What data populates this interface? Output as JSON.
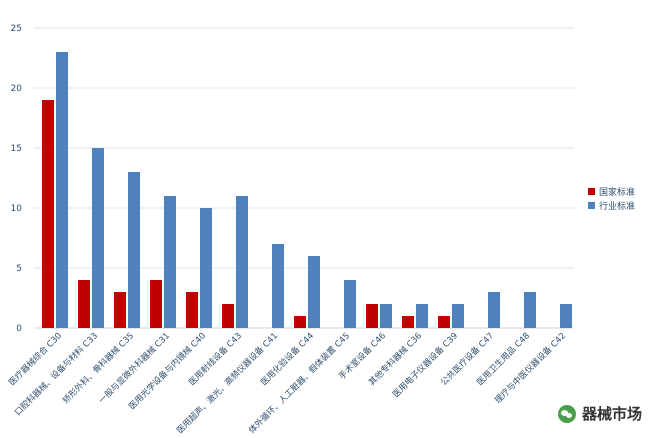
{
  "chart_data": {
    "type": "bar",
    "title": "",
    "xlabel": "",
    "ylabel": "",
    "ylim": [
      0,
      25
    ],
    "yticks": [
      0,
      5,
      10,
      15,
      20,
      25
    ],
    "grid": "horizontal",
    "legend_position": "right",
    "categories": [
      "医疗器械综合 C30",
      "口腔科器械、设备与材料 C33",
      "矫形外科、骨科器械 C35",
      "一般与显微外科器械 C31",
      "医用光学设备与内镜械 C40",
      "医用射线设备 C43",
      "医用超声、激光、高频仪器设备 C41",
      "医用化验设备 C44",
      "体外循环、人工脏器、假体装置 C45",
      "手术室设备 C46",
      "其他专科器械 C36",
      "医用电子仪器设备 C39",
      "公共医疗设备 C47",
      "医用卫生用品 C48",
      "理疗与中医仪器设备 C42"
    ],
    "series": [
      {
        "name": "国家标准",
        "color": "#c00000",
        "values": [
          19,
          4,
          3,
          4,
          3,
          2,
          0,
          1,
          0,
          2,
          1,
          1,
          0,
          0,
          0
        ]
      },
      {
        "name": "行业标准",
        "color": "#4f81bd",
        "values": [
          23,
          15,
          13,
          11,
          10,
          11,
          7,
          6,
          4,
          2,
          2,
          2,
          3,
          3,
          2
        ]
      }
    ]
  },
  "watermark": {
    "text": "器械市场",
    "icon": "wechat-icon"
  }
}
